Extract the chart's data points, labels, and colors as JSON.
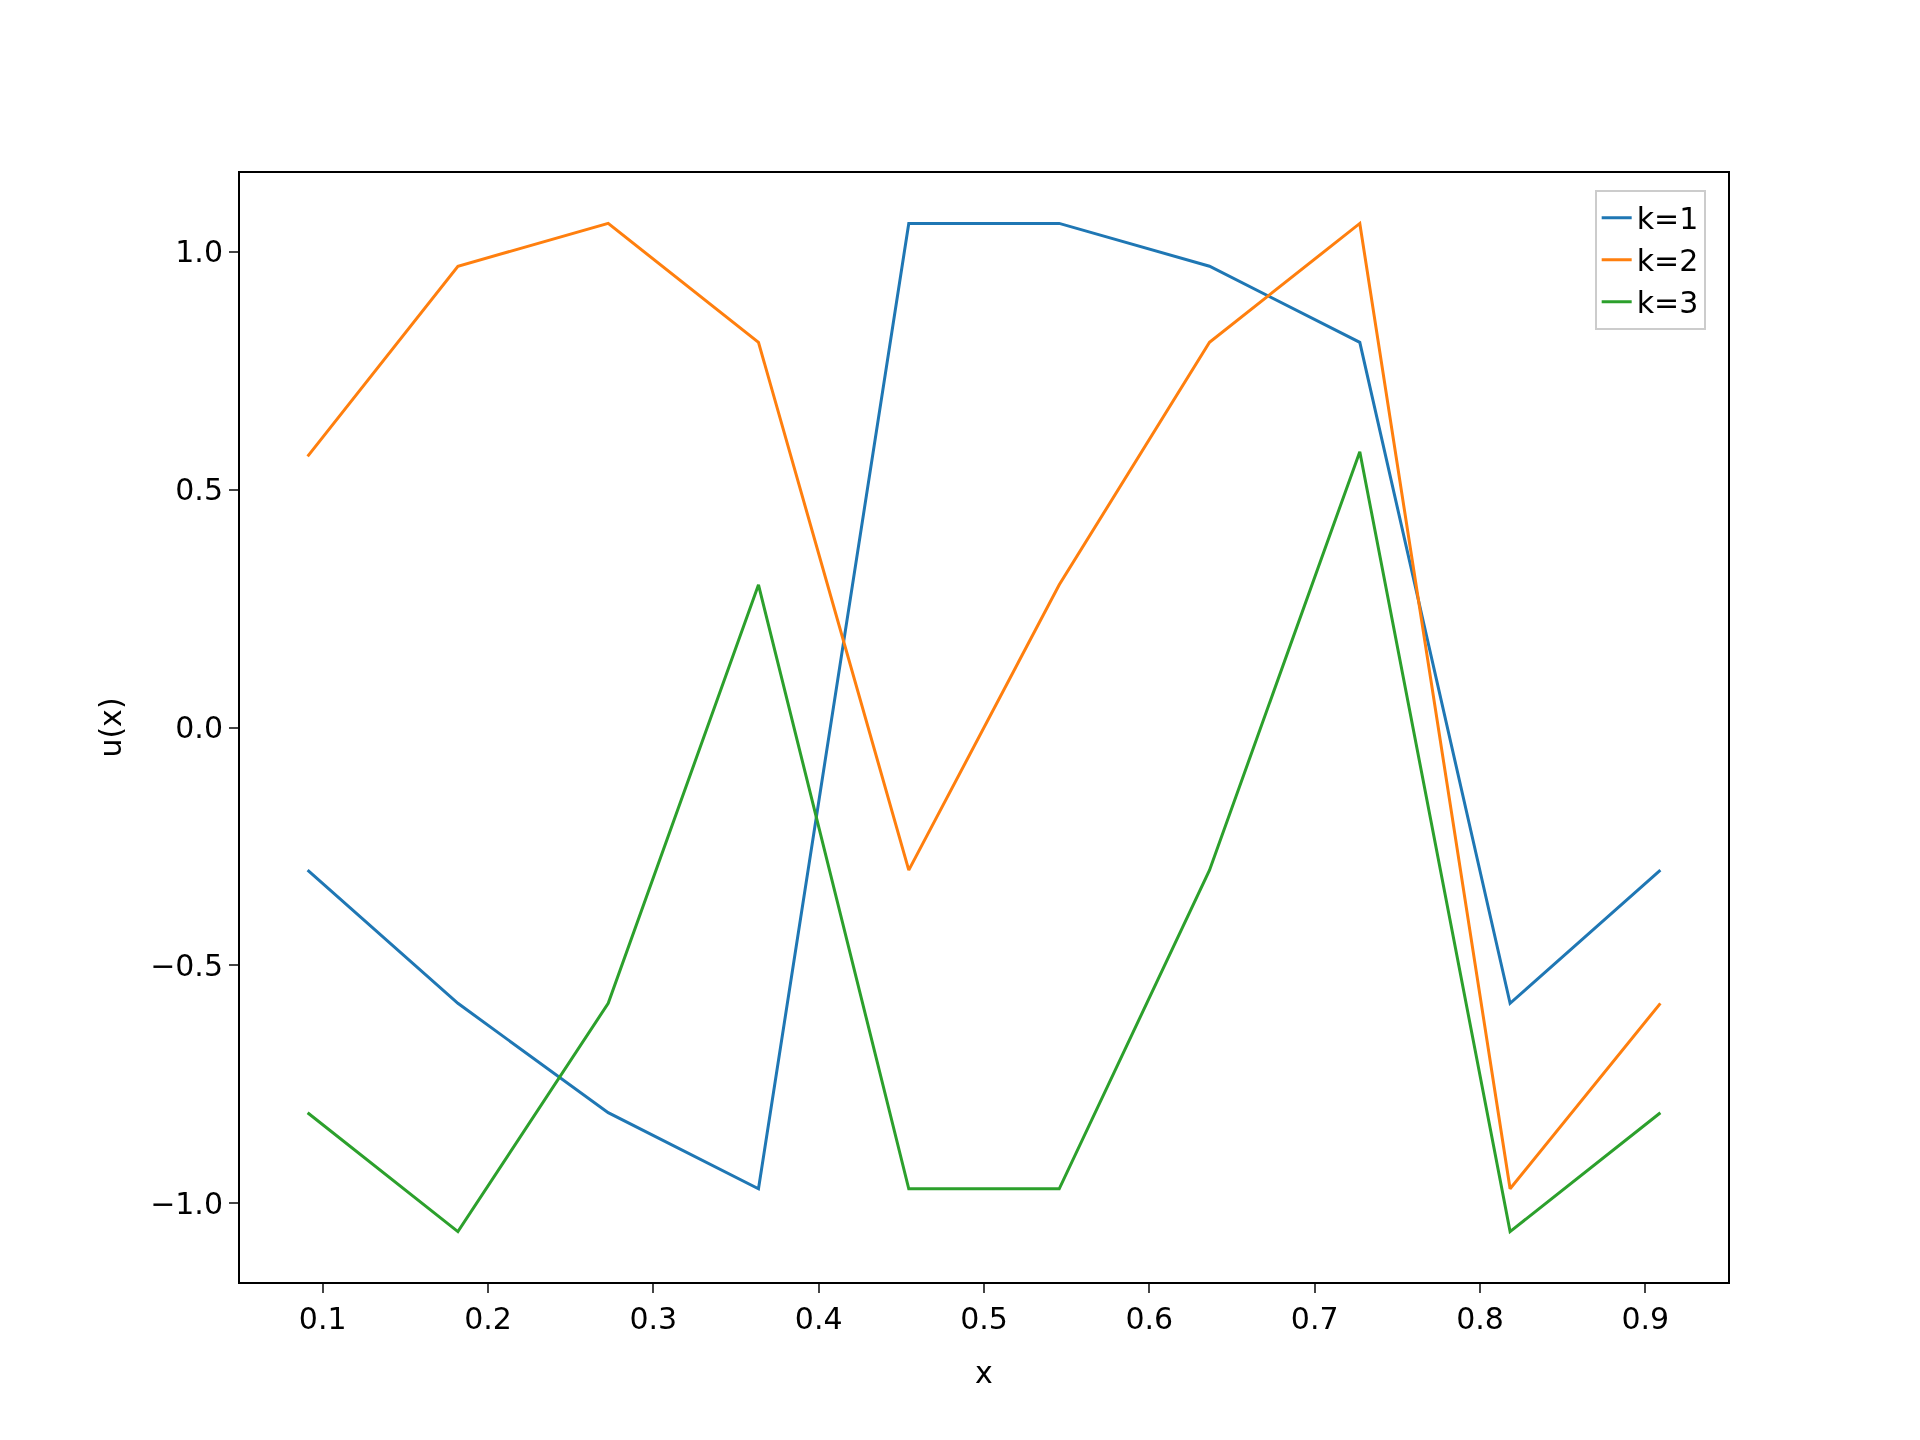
{
  "chart_data": {
    "type": "line",
    "xlabel": "x",
    "ylabel": "u(x)",
    "x": [
      0.0909,
      0.1818,
      0.2727,
      0.3636,
      0.4545,
      0.5455,
      0.6364,
      0.7273,
      0.8182,
      0.9091
    ],
    "series": [
      {
        "name": "k=1",
        "color": "#1f77b4",
        "values": [
          -0.3,
          -0.58,
          -0.81,
          -0.97,
          1.06,
          1.06,
          0.97,
          0.81,
          -0.58,
          -0.3
        ]
      },
      {
        "name": "k=2",
        "color": "#ff7f0e",
        "values": [
          0.57,
          0.97,
          1.06,
          0.81,
          -0.3,
          0.3,
          0.81,
          1.06,
          -0.97,
          -0.58
        ]
      },
      {
        "name": "k=3",
        "color": "#2ca02c",
        "values": [
          -0.81,
          -1.06,
          -0.58,
          0.3,
          -0.97,
          -0.97,
          -0.3,
          0.58,
          -1.06,
          -0.81
        ]
      }
    ],
    "xlim": [
      0.05,
      0.95
    ],
    "xticks": [
      0.1,
      0.2,
      0.3,
      0.4,
      0.5,
      0.6,
      0.7,
      0.8,
      0.9
    ],
    "ylim": [
      -1.166,
      1.166
    ],
    "yticks": [
      {
        "value": -1,
        "label": "−1.0"
      },
      {
        "value": -0.5,
        "label": "−0.5"
      },
      {
        "value": 0,
        "label": "0.0"
      },
      {
        "value": 0.5,
        "label": "0.5"
      },
      {
        "value": 1,
        "label": "1.0"
      }
    ],
    "grid": false,
    "legend": "top right",
    "marker": "none",
    "line_style": "solid"
  }
}
